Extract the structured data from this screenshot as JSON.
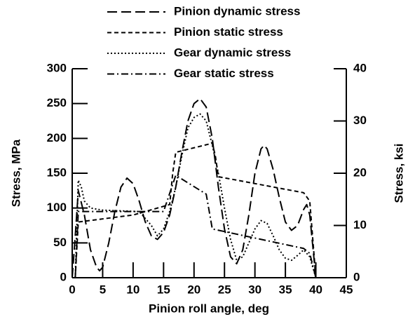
{
  "chart_data": {
    "type": "line",
    "xlabel": "Pinion roll angle, deg",
    "ylabel": "Stress, MPa",
    "y2label": "Stress, ksi",
    "xlim": [
      0,
      45
    ],
    "xticks": [
      0,
      5,
      10,
      15,
      20,
      25,
      30,
      35,
      40,
      45
    ],
    "ylim": [
      0,
      300
    ],
    "yticks": [
      0,
      50,
      100,
      150,
      200,
      250,
      300
    ],
    "y2lim": [
      0,
      40
    ],
    "y2ticks": [
      0,
      10,
      20,
      30,
      40
    ],
    "series": [
      {
        "name": "Pinion dynamic stress",
        "color": "#000000",
        "linestyle": "long-dash",
        "x": [
          0,
          0.5,
          1,
          2,
          3,
          4,
          4.5,
          5,
          6,
          7,
          8,
          9,
          10,
          11,
          12,
          13,
          14,
          15,
          16,
          17,
          18,
          19,
          20,
          21,
          22,
          23,
          24,
          25,
          26,
          27,
          28,
          29,
          30,
          31,
          31.5,
          32,
          33,
          34,
          35,
          36,
          37,
          38,
          38.5,
          39,
          40
        ],
        "values": [
          0,
          60,
          125,
          90,
          40,
          15,
          10,
          15,
          50,
          95,
          130,
          143,
          135,
          110,
          80,
          60,
          55,
          65,
          90,
          130,
          180,
          225,
          250,
          257,
          245,
          200,
          130,
          70,
          30,
          20,
          40,
          90,
          150,
          185,
          190,
          185,
          155,
          115,
          80,
          68,
          75,
          98,
          105,
          90,
          0
        ]
      },
      {
        "name": "Pinion static stress",
        "color": "#000000",
        "linestyle": "short-dash",
        "x": [
          0.5,
          1,
          10,
          16,
          16.5,
          17,
          23,
          23.5,
          24,
          38,
          39,
          40
        ],
        "values": [
          0,
          80,
          90,
          105,
          150,
          180,
          193,
          175,
          145,
          122,
          110,
          0
        ]
      },
      {
        "name": "Gear dynamic stress",
        "color": "#000000",
        "linestyle": "dotted",
        "x": [
          0.5,
          1,
          1.5,
          2,
          3,
          5,
          8,
          11,
          13,
          14,
          15,
          16,
          17,
          18,
          19,
          20,
          21,
          22,
          23,
          24,
          25,
          26,
          27,
          28,
          29,
          30,
          31,
          32,
          33,
          34,
          35,
          36,
          37,
          38,
          39,
          40
        ],
        "values": [
          0,
          140,
          130,
          110,
          100,
          97,
          96,
          95,
          75,
          60,
          70,
          95,
          130,
          175,
          215,
          230,
          235,
          225,
          190,
          150,
          100,
          55,
          25,
          30,
          50,
          70,
          82,
          78,
          60,
          40,
          28,
          25,
          32,
          40,
          30,
          0
        ]
      },
      {
        "name": "Gear static stress",
        "color": "#000000",
        "linestyle": "dash-dot",
        "x": [
          0.5,
          1,
          15,
          17,
          22,
          23,
          38,
          39,
          40
        ],
        "values": [
          0,
          95,
          95,
          147,
          120,
          70,
          42,
          35,
          0
        ]
      }
    ]
  }
}
